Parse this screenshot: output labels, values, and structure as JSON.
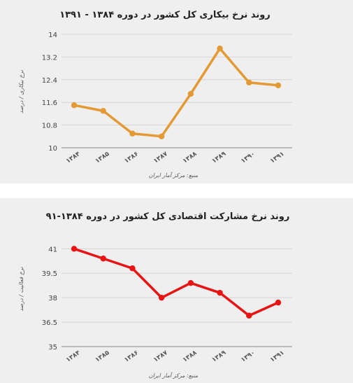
{
  "chart_data": [
    {
      "type": "line",
      "title": "روند نرخ بیکاری کل کشور در دوره ۱۳۸۴ - ۱۳۹۱",
      "ylabel": "نرخ بیکاری / درصد",
      "xlabel": "منبع: مرکز آمار ایران",
      "categories": [
        "۱۳۸۴",
        "۱۳۸۵",
        "۱۳۸۶",
        "۱۳۸۷",
        "۱۳۸۸",
        "۱۳۸۹",
        "۱۳۹۰",
        "۱۳۹۱"
      ],
      "values": [
        11.5,
        11.3,
        10.5,
        10.4,
        11.9,
        13.5,
        12.3,
        12.2
      ],
      "yticks": [
        "10",
        "10.8",
        "11.6",
        "12.4",
        "13.2",
        "14"
      ],
      "ylim": [
        10,
        14
      ],
      "grid": true,
      "color": "#e39a34"
    },
    {
      "type": "line",
      "title": "روند نرخ مشارکت اقتصادی کل کشور در دوره ۱۳۸۴-۹۱",
      "ylabel": "نرخ فعالیت / درصد",
      "xlabel": "منبع: مرکز آمار ایران",
      "categories": [
        "۱۳۸۴",
        "۱۳۸۵",
        "۱۳۸۶",
        "۱۳۸۷",
        "۱۳۸۸",
        "۱۳۸۹",
        "۱۳۹۰",
        "۱۳۹۱"
      ],
      "values": [
        41.0,
        40.4,
        39.8,
        38.0,
        38.9,
        38.3,
        36.9,
        37.7
      ],
      "yticks": [
        "35",
        "36.5",
        "38",
        "39.5",
        "41"
      ],
      "ylim": [
        35,
        42
      ],
      "grid": true,
      "color": "#e81313"
    }
  ]
}
